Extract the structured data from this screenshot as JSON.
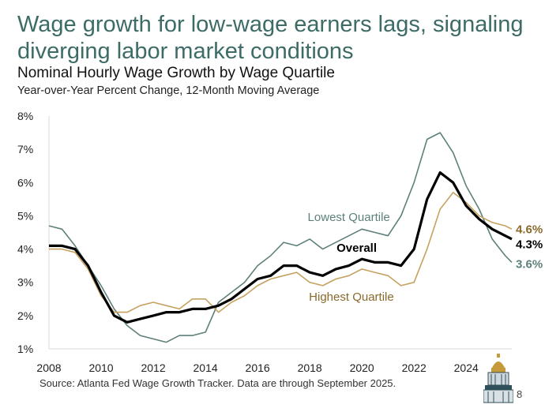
{
  "header": {
    "title": "Wage growth for low-wage earners lags, signaling diverging labor market conditions",
    "subtitle": "Nominal Hourly Wage Growth by Wage Quartile",
    "subtitle2": "Year-over-Year Percent Change, 12-Month Moving Average"
  },
  "footer": {
    "source": "Source: Atlanta Fed Wage Growth Tracker. Data are through September 2025.",
    "page_number": "8"
  },
  "colors": {
    "title": "#3d6b66",
    "lowest": "#5e807b",
    "overall": "#000000",
    "highest": "#c6a260",
    "highest_label": "#8a6a2b"
  },
  "chart_data": {
    "type": "line",
    "xlim": [
      2008,
      2025.75
    ],
    "ylim": [
      1,
      8
    ],
    "x_ticks": [
      2008,
      2010,
      2012,
      2014,
      2016,
      2018,
      2020,
      2022,
      2024
    ],
    "y_ticks": [
      1,
      2,
      3,
      4,
      5,
      6,
      7,
      8
    ],
    "y_tick_labels": [
      "1%",
      "2%",
      "3%",
      "4%",
      "5%",
      "6%",
      "7%",
      "8%"
    ],
    "series": [
      {
        "name": "Lowest Quartile",
        "label": "Lowest Quartile",
        "end_label": "3.6%",
        "x": [
          2008,
          2008.5,
          2009,
          2009.5,
          2010,
          2010.5,
          2011,
          2011.5,
          2012,
          2012.5,
          2013,
          2013.5,
          2014,
          2014.5,
          2015,
          2015.5,
          2016,
          2016.5,
          2017,
          2017.5,
          2018,
          2018.5,
          2019,
          2019.5,
          2020,
          2020.5,
          2021,
          2021.5,
          2022,
          2022.5,
          2023,
          2023.5,
          2024,
          2024.5,
          2025,
          2025.5,
          2025.75
        ],
        "values": [
          4.7,
          4.6,
          4.1,
          3.5,
          2.9,
          2.2,
          1.7,
          1.4,
          1.3,
          1.2,
          1.4,
          1.4,
          1.5,
          2.4,
          2.7,
          3.0,
          3.5,
          3.8,
          4.2,
          4.1,
          4.3,
          4.0,
          4.2,
          4.4,
          4.6,
          4.5,
          4.4,
          5.0,
          6.0,
          7.3,
          7.5,
          6.9,
          5.9,
          5.2,
          4.3,
          3.8,
          3.6
        ]
      },
      {
        "name": "Overall",
        "label": "Overall",
        "end_label": "4.3%",
        "x": [
          2008,
          2008.5,
          2009,
          2009.5,
          2010,
          2010.5,
          2011,
          2011.5,
          2012,
          2012.5,
          2013,
          2013.5,
          2014,
          2014.5,
          2015,
          2015.5,
          2016,
          2016.5,
          2017,
          2017.5,
          2018,
          2018.5,
          2019,
          2019.5,
          2020,
          2020.5,
          2021,
          2021.5,
          2022,
          2022.5,
          2023,
          2023.5,
          2024,
          2024.5,
          2025,
          2025.5,
          2025.75
        ],
        "values": [
          4.1,
          4.1,
          4.0,
          3.5,
          2.7,
          2.0,
          1.8,
          1.9,
          2.0,
          2.1,
          2.1,
          2.2,
          2.2,
          2.3,
          2.5,
          2.8,
          3.1,
          3.2,
          3.5,
          3.5,
          3.3,
          3.2,
          3.4,
          3.5,
          3.7,
          3.6,
          3.6,
          3.5,
          4.0,
          5.5,
          6.3,
          6.0,
          5.3,
          4.9,
          4.6,
          4.4,
          4.3
        ]
      },
      {
        "name": "Highest Quartile",
        "label": "Highest Quartile",
        "end_label": "4.6%",
        "x": [
          2008,
          2008.5,
          2009,
          2009.5,
          2010,
          2010.5,
          2011,
          2011.5,
          2012,
          2012.5,
          2013,
          2013.5,
          2014,
          2014.5,
          2015,
          2015.5,
          2016,
          2016.5,
          2017,
          2017.5,
          2018,
          2018.5,
          2019,
          2019.5,
          2020,
          2020.5,
          2021,
          2021.5,
          2022,
          2022.5,
          2023,
          2023.5,
          2024,
          2024.5,
          2025,
          2025.5,
          2025.75
        ],
        "values": [
          4.0,
          4.0,
          3.9,
          3.4,
          2.6,
          2.1,
          2.1,
          2.3,
          2.4,
          2.3,
          2.2,
          2.5,
          2.5,
          2.1,
          2.4,
          2.6,
          2.9,
          3.1,
          3.2,
          3.3,
          3.0,
          2.9,
          3.1,
          3.2,
          3.4,
          3.3,
          3.2,
          2.9,
          3.0,
          4.0,
          5.2,
          5.7,
          5.4,
          5.0,
          4.8,
          4.7,
          4.6
        ]
      }
    ]
  }
}
